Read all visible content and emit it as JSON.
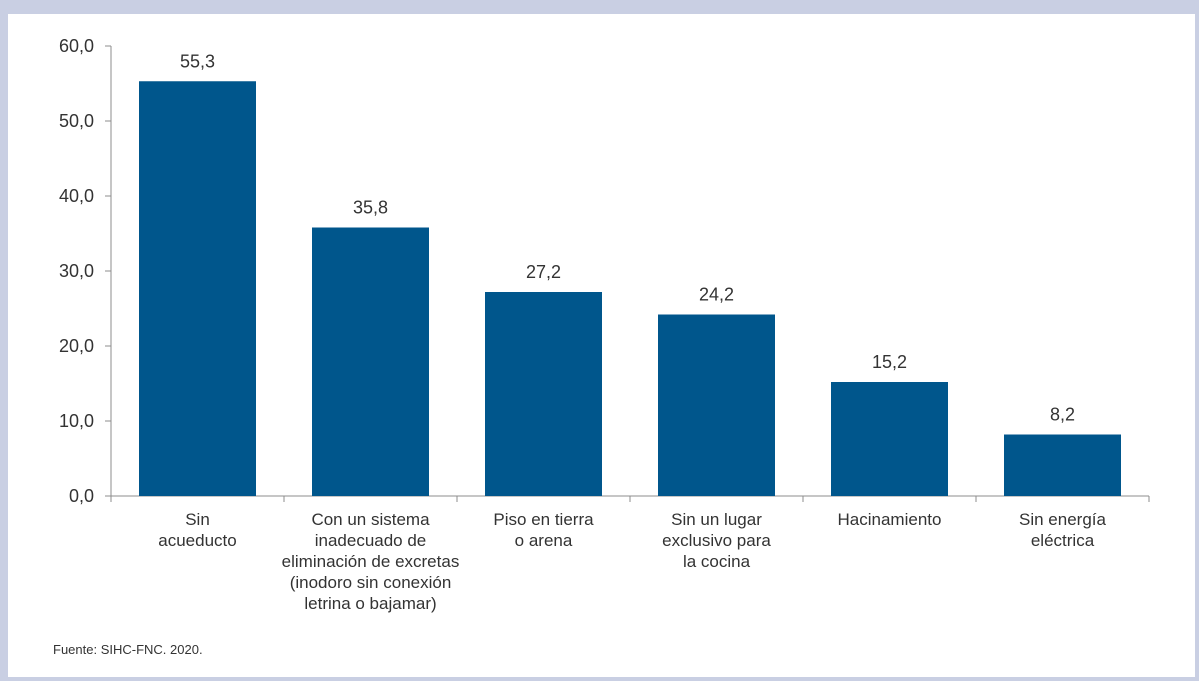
{
  "chart_data": {
    "type": "bar",
    "categories": [
      [
        "Sin",
        "acueducto"
      ],
      [
        "Con un sistema",
        "inadecuado de",
        "eliminación de excretas",
        "(inodoro sin conexión",
        "letrina o bajamar)"
      ],
      [
        "Piso en tierra",
        "o arena"
      ],
      [
        "Sin un lugar",
        "exclusivo para",
        "la cocina"
      ],
      [
        "Hacinamiento"
      ],
      [
        "Sin energía",
        "eléctrica"
      ]
    ],
    "values": [
      55.3,
      35.8,
      27.2,
      24.2,
      15.2,
      8.2
    ],
    "value_labels": [
      "55,3",
      "35,8",
      "27,2",
      "24,2",
      "15,2",
      "8,2"
    ],
    "yticks": [
      "0,0",
      "10,0",
      "20,0",
      "30,0",
      "40,0",
      "50,0",
      "60,0"
    ],
    "ylim": [
      0,
      60
    ],
    "grid": false,
    "bar_color": "#00568c"
  },
  "source": "Fuente:  SIHC-FNC. 2020."
}
